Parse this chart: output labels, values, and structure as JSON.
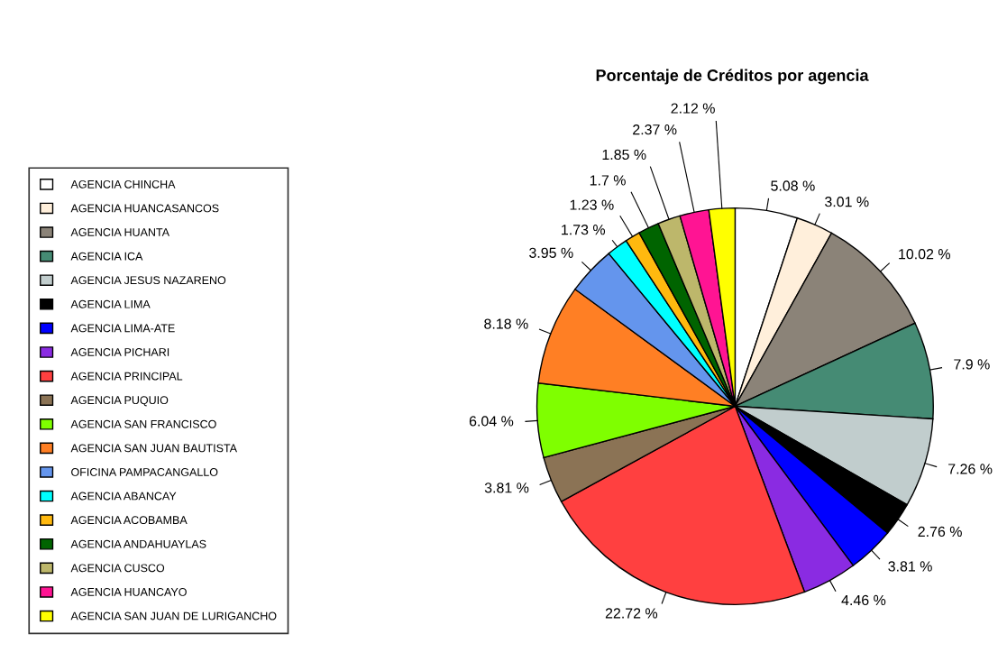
{
  "chart_data": {
    "type": "pie",
    "title": "Porcentaje de Créditos por agencia",
    "categories": [
      "AGENCIA CHINCHA",
      "AGENCIA HUANCASANCOS",
      "AGENCIA HUANTA",
      "AGENCIA ICA",
      "AGENCIA JESUS NAZARENO",
      "AGENCIA LIMA",
      "AGENCIA LIMA-ATE",
      "AGENCIA PICHARI",
      "AGENCIA PRINCIPAL",
      "AGENCIA PUQUIO",
      "AGENCIA SAN FRANCISCO",
      "AGENCIA SAN JUAN BAUTISTA",
      "OFICINA PAMPACANGALLO",
      "AGENCIA ABANCAY",
      "AGENCIA ACOBAMBA",
      "AGENCIA ANDAHUAYLAS",
      "AGENCIA CUSCO",
      "AGENCIA HUANCAYO",
      "AGENCIA SAN JUAN DE LURIGANCHO"
    ],
    "values": [
      5.08,
      3.01,
      10.02,
      7.9,
      7.26,
      2.76,
      3.81,
      4.46,
      22.72,
      3.81,
      6.04,
      8.18,
      3.95,
      1.73,
      1.23,
      1.7,
      1.85,
      2.37,
      2.12
    ],
    "value_labels": [
      "5.08 %",
      "3.01 %",
      "10.02 %",
      "7.9 %",
      "7.26 %",
      "2.76 %",
      "3.81 %",
      "4.46 %",
      "22.72 %",
      "3.81 %",
      "6.04 %",
      "8.18 %",
      "3.95 %",
      "1.73 %",
      "1.23 %",
      "1.7 %",
      "1.85 %",
      "2.37 %",
      "2.12 %"
    ],
    "colors": [
      "#ffffff",
      "#ffefdb",
      "#8b8378",
      "#458b74",
      "#c1cdcd",
      "#000000",
      "#0000ff",
      "#8a2be2",
      "#ff4040",
      "#8b7355",
      "#7fff00",
      "#ff7f24",
      "#6495ed",
      "#00ffff",
      "#ffb90f",
      "#006400",
      "#bdb76b",
      "#ff1493",
      "#ffff00"
    ],
    "legend": "left"
  }
}
